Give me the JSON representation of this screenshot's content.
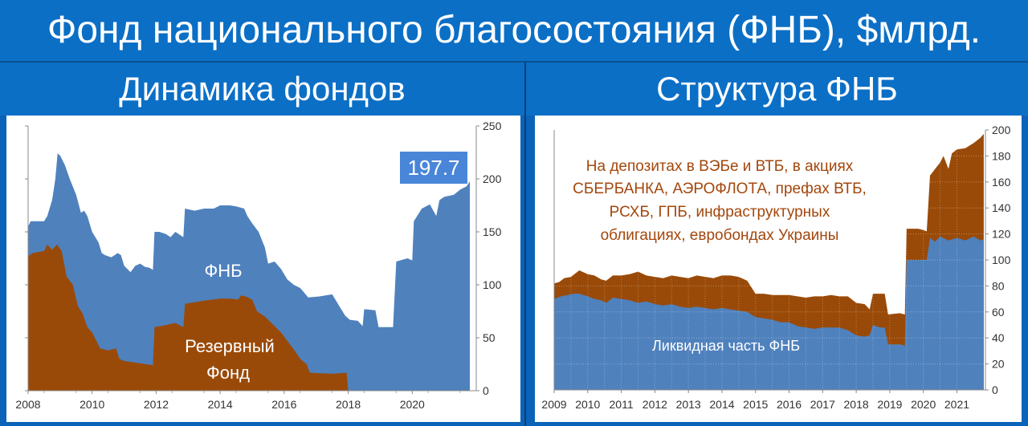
{
  "header": {
    "title": "Фонд национального благосостояния (ФНБ), $млрд.",
    "left_panel_title": "Динамика фондов",
    "right_panel_title": "Структура ФНБ"
  },
  "colors": {
    "background": "#0b6fc6",
    "fnb_blue": "#4f81bd",
    "reserve_brown": "#9a4a08",
    "annotation_text": "#a3470c",
    "callout_bg": "#4a86d8"
  },
  "chart_data": [
    {
      "type": "area",
      "title": "Динамика фондов",
      "x_ticks": [
        "2008",
        "2010",
        "2012",
        "2014",
        "2016",
        "2018",
        "2020"
      ],
      "y_ticks": [
        "0",
        "50",
        "100",
        "150",
        "200",
        "250"
      ],
      "xlim": [
        2008.0,
        2022.0
      ],
      "ylim": [
        0,
        250
      ],
      "grid": false,
      "series": [
        {
          "name": "ФНБ",
          "color": "#4f81bd",
          "points": [
            [
              2008.0,
              155
            ],
            [
              2008.08,
              160
            ],
            [
              2008.5,
              160
            ],
            [
              2008.6,
              165
            ],
            [
              2008.75,
              180
            ],
            [
              2008.85,
              200
            ],
            [
              2008.92,
              224
            ],
            [
              2009.0,
              222
            ],
            [
              2009.15,
              213
            ],
            [
              2009.3,
              200
            ],
            [
              2009.5,
              185
            ],
            [
              2009.65,
              168
            ],
            [
              2009.75,
              170
            ],
            [
              2009.85,
              165
            ],
            [
              2010.0,
              150
            ],
            [
              2010.2,
              140
            ],
            [
              2010.3,
              130
            ],
            [
              2010.4,
              128
            ],
            [
              2010.6,
              126
            ],
            [
              2010.8,
              130
            ],
            [
              2010.9,
              128
            ],
            [
              2011.0,
              118
            ],
            [
              2011.2,
              112
            ],
            [
              2011.35,
              118
            ],
            [
              2011.5,
              120
            ],
            [
              2011.65,
              117
            ],
            [
              2011.8,
              116
            ],
            [
              2011.9,
              114
            ],
            [
              2011.95,
              150
            ],
            [
              2012.1,
              150
            ],
            [
              2012.3,
              148
            ],
            [
              2012.45,
              145
            ],
            [
              2012.6,
              150
            ],
            [
              2012.85,
              145
            ],
            [
              2012.9,
              172
            ],
            [
              2013.2,
              170
            ],
            [
              2013.5,
              172
            ],
            [
              2013.8,
              172
            ],
            [
              2014.0,
              175
            ],
            [
              2014.3,
              175
            ],
            [
              2014.5,
              174
            ],
            [
              2014.75,
              172
            ],
            [
              2014.85,
              165
            ],
            [
              2015.0,
              158
            ],
            [
              2015.2,
              150
            ],
            [
              2015.4,
              135
            ],
            [
              2015.5,
              120
            ],
            [
              2015.7,
              122
            ],
            [
              2015.9,
              115
            ],
            [
              2016.1,
              105
            ],
            [
              2016.3,
              100
            ],
            [
              2016.5,
              97
            ],
            [
              2016.75,
              88
            ],
            [
              2017.1,
              89
            ],
            [
              2017.5,
              91
            ],
            [
              2017.9,
              71
            ],
            [
              2018.05,
              67
            ],
            [
              2018.3,
              66
            ],
            [
              2018.45,
              61
            ],
            [
              2018.5,
              77
            ],
            [
              2018.85,
              76
            ],
            [
              2018.95,
              60
            ],
            [
              2019.4,
              60
            ],
            [
              2019.5,
              122
            ],
            [
              2019.85,
              125
            ],
            [
              2020.0,
              123
            ],
            [
              2020.05,
              160
            ],
            [
              2020.3,
              172
            ],
            [
              2020.55,
              176
            ],
            [
              2020.75,
              165
            ],
            [
              2020.85,
              180
            ],
            [
              2021.0,
              183
            ],
            [
              2021.3,
              185
            ],
            [
              2021.5,
              190
            ],
            [
              2021.7,
              193
            ],
            [
              2021.8,
              197.7
            ]
          ]
        },
        {
          "name": "Резервный Фонд",
          "color": "#9a4a08",
          "points": [
            [
              2008.0,
              127
            ],
            [
              2008.15,
              130
            ],
            [
              2008.5,
              132
            ],
            [
              2008.6,
              138
            ],
            [
              2008.75,
              133
            ],
            [
              2008.9,
              138
            ],
            [
              2009.05,
              132
            ],
            [
              2009.2,
              108
            ],
            [
              2009.4,
              100
            ],
            [
              2009.55,
              80
            ],
            [
              2009.7,
              73
            ],
            [
              2009.85,
              60
            ],
            [
              2010.0,
              55
            ],
            [
              2010.25,
              40
            ],
            [
              2010.5,
              38
            ],
            [
              2010.75,
              40
            ],
            [
              2010.85,
              30
            ],
            [
              2011.0,
              28
            ],
            [
              2011.5,
              26
            ],
            [
              2011.9,
              24
            ],
            [
              2011.95,
              60
            ],
            [
              2012.3,
              62
            ],
            [
              2012.6,
              64
            ],
            [
              2012.85,
              60
            ],
            [
              2012.9,
              82
            ],
            [
              2013.5,
              85
            ],
            [
              2014.0,
              87
            ],
            [
              2014.35,
              87
            ],
            [
              2014.55,
              86
            ],
            [
              2014.65,
              90
            ],
            [
              2014.8,
              89
            ],
            [
              2015.0,
              86
            ],
            [
              2015.15,
              75
            ],
            [
              2015.4,
              70
            ],
            [
              2015.6,
              64
            ],
            [
              2015.9,
              55
            ],
            [
              2016.15,
              45
            ],
            [
              2016.35,
              37
            ],
            [
              2016.5,
              30
            ],
            [
              2016.7,
              25
            ],
            [
              2016.8,
              17
            ],
            [
              2017.5,
              16
            ],
            [
              2017.95,
              17
            ],
            [
              2018.0,
              0
            ]
          ]
        }
      ],
      "labels": {
        "fnb": "ФНБ",
        "reserve_line1": "Резервный",
        "reserve_line2": "Фонд",
        "callout": "197.7"
      }
    },
    {
      "type": "area",
      "title": "Структура ФНБ",
      "x_ticks": [
        "2009",
        "2010",
        "2011",
        "2012",
        "2013",
        "2014",
        "2015",
        "2016",
        "2017",
        "2018",
        "2019",
        "2020",
        "2021"
      ],
      "y_ticks": [
        "0",
        "20",
        "40",
        "60",
        "80",
        "100",
        "120",
        "140",
        "160",
        "180",
        "200"
      ],
      "xlim": [
        2009.0,
        2021.85
      ],
      "ylim": [
        0,
        200
      ],
      "grid": true,
      "series": [
        {
          "name": "Ликвидная часть ФНБ",
          "color": "#4f81bd",
          "points": [
            [
              2009.0,
              70
            ],
            [
              2009.2,
              72
            ],
            [
              2009.4,
              73
            ],
            [
              2009.6,
              74
            ],
            [
              2009.75,
              74
            ],
            [
              2010.0,
              72
            ],
            [
              2010.2,
              70
            ],
            [
              2010.4,
              69
            ],
            [
              2010.55,
              67
            ],
            [
              2010.75,
              71
            ],
            [
              2011.0,
              70
            ],
            [
              2011.25,
              69
            ],
            [
              2011.5,
              67
            ],
            [
              2011.75,
              68
            ],
            [
              2012.0,
              66
            ],
            [
              2012.25,
              65
            ],
            [
              2012.5,
              66
            ],
            [
              2012.75,
              64
            ],
            [
              2013.0,
              63
            ],
            [
              2013.25,
              64
            ],
            [
              2013.5,
              63
            ],
            [
              2013.75,
              62
            ],
            [
              2014.0,
              63
            ],
            [
              2014.25,
              62
            ],
            [
              2014.5,
              61
            ],
            [
              2014.75,
              60
            ],
            [
              2015.0,
              56
            ],
            [
              2015.25,
              55
            ],
            [
              2015.5,
              54
            ],
            [
              2015.75,
              52
            ],
            [
              2016.0,
              52
            ],
            [
              2016.25,
              49
            ],
            [
              2016.5,
              48
            ],
            [
              2016.75,
              47
            ],
            [
              2017.0,
              48
            ],
            [
              2017.25,
              48
            ],
            [
              2017.5,
              48
            ],
            [
              2017.75,
              46
            ],
            [
              2018.0,
              42
            ],
            [
              2018.25,
              41
            ],
            [
              2018.4,
              42
            ],
            [
              2018.5,
              50
            ],
            [
              2018.7,
              48
            ],
            [
              2018.85,
              48
            ],
            [
              2018.95,
              35
            ],
            [
              2019.3,
              35
            ],
            [
              2019.45,
              34
            ],
            [
              2019.5,
              100
            ],
            [
              2019.85,
              100
            ],
            [
              2020.0,
              100
            ],
            [
              2020.1,
              100
            ],
            [
              2020.2,
              117
            ],
            [
              2020.35,
              114
            ],
            [
              2020.5,
              118
            ],
            [
              2020.75,
              115
            ],
            [
              2021.0,
              117
            ],
            [
              2021.25,
              115
            ],
            [
              2021.5,
              118
            ],
            [
              2021.7,
              115
            ],
            [
              2021.8,
              116
            ]
          ]
        },
        {
          "name": "На депозитах в ВЭБе и ВТБ, в акциях СБЕРБАНКА, АЭРОФЛОТА, префах ВТБ, РСХБ, ГПБ, инфраструктурных облигациях, еврободах Украины",
          "color": "#9a4a08",
          "points": [
            [
              2009.0,
              82
            ],
            [
              2009.15,
              83
            ],
            [
              2009.3,
              86
            ],
            [
              2009.5,
              87
            ],
            [
              2009.75,
              92
            ],
            [
              2010.0,
              89
            ],
            [
              2010.2,
              88
            ],
            [
              2010.4,
              85
            ],
            [
              2010.55,
              84
            ],
            [
              2010.75,
              88
            ],
            [
              2011.0,
              88
            ],
            [
              2011.25,
              89
            ],
            [
              2011.5,
              91
            ],
            [
              2011.75,
              88
            ],
            [
              2012.0,
              87
            ],
            [
              2012.25,
              86
            ],
            [
              2012.5,
              88
            ],
            [
              2012.75,
              87
            ],
            [
              2013.0,
              86
            ],
            [
              2013.25,
              88
            ],
            [
              2013.5,
              87
            ],
            [
              2013.75,
              86
            ],
            [
              2014.0,
              88
            ],
            [
              2014.25,
              88
            ],
            [
              2014.5,
              87
            ],
            [
              2014.75,
              84
            ],
            [
              2015.0,
              74
            ],
            [
              2015.25,
              74
            ],
            [
              2015.5,
              73
            ],
            [
              2015.75,
              73
            ],
            [
              2016.0,
              73
            ],
            [
              2016.25,
              72
            ],
            [
              2016.5,
              71
            ],
            [
              2016.75,
              72
            ],
            [
              2017.0,
              72
            ],
            [
              2017.25,
              73
            ],
            [
              2017.5,
              72
            ],
            [
              2017.75,
              72
            ],
            [
              2018.0,
              67
            ],
            [
              2018.25,
              66
            ],
            [
              2018.4,
              62
            ],
            [
              2018.5,
              74
            ],
            [
              2018.7,
              74
            ],
            [
              2018.85,
              74
            ],
            [
              2018.95,
              58
            ],
            [
              2019.3,
              59
            ],
            [
              2019.45,
              58
            ],
            [
              2019.5,
              124
            ],
            [
              2019.85,
              124
            ],
            [
              2020.0,
              123
            ],
            [
              2020.1,
              122
            ],
            [
              2020.2,
              165
            ],
            [
              2020.35,
              170
            ],
            [
              2020.5,
              175
            ],
            [
              2020.6,
              180
            ],
            [
              2020.75,
              170
            ],
            [
              2020.85,
              182
            ],
            [
              2021.0,
              185
            ],
            [
              2021.25,
              186
            ],
            [
              2021.5,
              190
            ],
            [
              2021.7,
              194
            ],
            [
              2021.8,
              197
            ]
          ]
        }
      ],
      "labels": {
        "liquid": "Ликвидная часть ФНБ",
        "annotation": [
          "На депозитах в ВЭБе и ВТБ, в акциях",
          "СБЕРБАНКА, АЭРОФЛОТА, префах ВТБ,",
          "РСХБ, ГПБ, инфраструктурных",
          "облигациях, евробондах Украины"
        ]
      }
    }
  ]
}
